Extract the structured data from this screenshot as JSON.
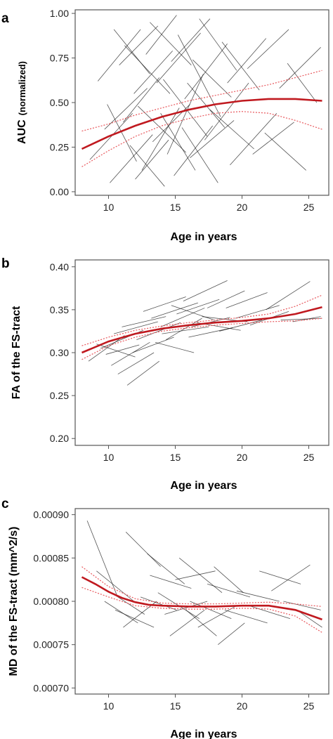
{
  "chart_data": [
    {
      "panel_label": "a",
      "type": "line",
      "xlabel": "Age in years",
      "ylabel_main": "AUC",
      "ylabel_sub": "(normalized)",
      "xlim": [
        7.5,
        26.5
      ],
      "ylim": [
        -0.02,
        1.02
      ],
      "xticks": [
        10,
        15,
        20,
        25
      ],
      "xtick_labels": [
        "10",
        "15",
        "20",
        "25"
      ],
      "yticks": [
        0,
        0.25,
        0.5,
        0.75,
        1.0
      ],
      "ytick_labels": [
        "0.00",
        "0.25",
        "0.50",
        "0.75",
        "1.00"
      ],
      "grid": false,
      "series": [
        {
          "role": "fit",
          "x": [
            8,
            10,
            12,
            14,
            16,
            18,
            20,
            22,
            24,
            26
          ],
          "y": [
            0.24,
            0.31,
            0.37,
            0.42,
            0.46,
            0.49,
            0.51,
            0.52,
            0.52,
            0.51
          ]
        },
        {
          "role": "ci_upper",
          "x": [
            8,
            10,
            12,
            14,
            16,
            18,
            20,
            22,
            24,
            26
          ],
          "y": [
            0.34,
            0.38,
            0.43,
            0.47,
            0.51,
            0.54,
            0.57,
            0.6,
            0.64,
            0.68
          ]
        },
        {
          "role": "ci_lower",
          "x": [
            8,
            10,
            12,
            14,
            16,
            18,
            20,
            22,
            24,
            26
          ],
          "y": [
            0.14,
            0.23,
            0.31,
            0.37,
            0.41,
            0.44,
            0.45,
            0.44,
            0.4,
            0.35
          ]
        }
      ],
      "subjects": [
        [
          9.2,
          0.62,
          12.4,
          0.91
        ],
        [
          8.6,
          0.18,
          11.8,
          0.44
        ],
        [
          10.1,
          0.05,
          13.3,
          0.32
        ],
        [
          11.2,
          0.82,
          14.6,
          0.55
        ],
        [
          12.5,
          0.12,
          15.3,
          0.47
        ],
        [
          13.1,
          0.95,
          16.2,
          0.71
        ],
        [
          14.4,
          0.21,
          17.1,
          0.66
        ],
        [
          15.2,
          0.88,
          18.4,
          0.42
        ],
        [
          9.7,
          0.35,
          12.9,
          0.58
        ],
        [
          10.8,
          0.71,
          13.7,
          0.93
        ],
        [
          12.2,
          0.48,
          15.8,
          0.22
        ],
        [
          13.6,
          0.61,
          16.9,
          0.89
        ],
        [
          14.9,
          0.09,
          17.8,
          0.37
        ],
        [
          16.3,
          0.74,
          19.2,
          0.53
        ],
        [
          17.2,
          0.29,
          20.5,
          0.61
        ],
        [
          18.5,
          0.84,
          21.3,
          0.57
        ],
        [
          19.1,
          0.15,
          22.6,
          0.44
        ],
        [
          20.4,
          0.69,
          23.5,
          0.91
        ],
        [
          21.7,
          0.33,
          24.8,
          0.12
        ],
        [
          22.8,
          0.58,
          25.9,
          0.81
        ],
        [
          11.6,
          0.26,
          14.2,
          0.03
        ],
        [
          13.9,
          0.44,
          16.5,
          0.12
        ],
        [
          15.7,
          0.52,
          18.9,
          0.83
        ],
        [
          16.8,
          0.97,
          19.6,
          0.68
        ],
        [
          10.4,
          0.91,
          13.1,
          0.66
        ],
        [
          12.8,
          0.77,
          15.1,
          0.99
        ],
        [
          14.1,
          0.63,
          17.4,
          0.31
        ],
        [
          15.5,
          0.36,
          18.2,
          0.05
        ],
        [
          9.9,
          0.49,
          12.1,
          0.17
        ],
        [
          11.9,
          0.55,
          14.8,
          0.79
        ],
        [
          13.3,
          0.28,
          16.1,
          0.49
        ],
        [
          17.6,
          0.46,
          20.9,
          0.24
        ],
        [
          18.9,
          0.61,
          21.8,
          0.86
        ],
        [
          20.8,
          0.21,
          23.9,
          0.39
        ],
        [
          23.4,
          0.72,
          25.6,
          0.5
        ],
        [
          12.0,
          0.07,
          14.5,
          0.29
        ],
        [
          14.7,
          0.73,
          17.6,
          0.97
        ],
        [
          16.1,
          0.19,
          19.4,
          0.4
        ],
        [
          11.1,
          0.39,
          13.8,
          0.64
        ],
        [
          15.9,
          0.61,
          18.7,
          0.36
        ]
      ]
    },
    {
      "panel_label": "b",
      "type": "line",
      "xlabel": "Age in years",
      "ylabel": "FA of the FS-tract",
      "xlim": [
        7.5,
        26.5
      ],
      "ylim": [
        0.192,
        0.408
      ],
      "xticks": [
        10,
        15,
        20,
        25
      ],
      "xtick_labels": [
        "10",
        "15",
        "20",
        "25"
      ],
      "yticks": [
        0.2,
        0.25,
        0.3,
        0.35,
        0.4
      ],
      "ytick_labels": [
        "0.20",
        "0.25",
        "0.30",
        "0.35",
        "0.40"
      ],
      "grid": false,
      "series": [
        {
          "role": "fit",
          "x": [
            8,
            10,
            12,
            14,
            16,
            18,
            20,
            22,
            24,
            26
          ],
          "y": [
            0.3,
            0.313,
            0.322,
            0.328,
            0.332,
            0.335,
            0.337,
            0.34,
            0.345,
            0.353
          ]
        },
        {
          "role": "ci_upper",
          "x": [
            8,
            10,
            12,
            14,
            16,
            18,
            20,
            22,
            24,
            26
          ],
          "y": [
            0.308,
            0.318,
            0.326,
            0.331,
            0.335,
            0.338,
            0.341,
            0.345,
            0.354,
            0.367
          ]
        },
        {
          "role": "ci_lower",
          "x": [
            8,
            10,
            12,
            14,
            16,
            18,
            20,
            22,
            24,
            26
          ],
          "y": [
            0.292,
            0.308,
            0.318,
            0.325,
            0.329,
            0.332,
            0.334,
            0.336,
            0.337,
            0.34
          ]
        }
      ],
      "subjects": [
        [
          8.5,
          0.29,
          11.2,
          0.32
        ],
        [
          9.4,
          0.305,
          12.6,
          0.326
        ],
        [
          10.2,
          0.285,
          13.1,
          0.312
        ],
        [
          11.0,
          0.33,
          14.3,
          0.342
        ],
        [
          12.1,
          0.315,
          15.4,
          0.335
        ],
        [
          13.2,
          0.34,
          16.7,
          0.358
        ],
        [
          14.0,
          0.322,
          17.5,
          0.33
        ],
        [
          15.1,
          0.345,
          18.3,
          0.362
        ],
        [
          16.2,
          0.33,
          19.1,
          0.341
        ],
        [
          17.4,
          0.352,
          20.2,
          0.372
        ],
        [
          18.3,
          0.325,
          21.5,
          0.338
        ],
        [
          19.5,
          0.34,
          22.8,
          0.355
        ],
        [
          9.1,
          0.31,
          12.0,
          0.295
        ],
        [
          10.7,
          0.275,
          13.4,
          0.3
        ],
        [
          11.8,
          0.3,
          14.9,
          0.318
        ],
        [
          13.5,
          0.312,
          16.4,
          0.3
        ],
        [
          14.7,
          0.355,
          17.9,
          0.338
        ],
        [
          16.0,
          0.318,
          19.3,
          0.329
        ],
        [
          20.6,
          0.332,
          23.5,
          0.348
        ],
        [
          21.8,
          0.35,
          25.1,
          0.383
        ],
        [
          22.9,
          0.338,
          26.0,
          0.34
        ],
        [
          12.6,
          0.348,
          15.8,
          0.365
        ],
        [
          15.6,
          0.36,
          18.9,
          0.384
        ],
        [
          10.4,
          0.322,
          13.7,
          0.336
        ],
        [
          17.0,
          0.342,
          20.4,
          0.336
        ],
        [
          18.8,
          0.352,
          21.9,
          0.37
        ],
        [
          9.8,
          0.298,
          12.3,
          0.309
        ],
        [
          13.9,
          0.33,
          17.2,
          0.352
        ],
        [
          11.4,
          0.262,
          13.8,
          0.29
        ],
        [
          23.8,
          0.336,
          25.9,
          0.342
        ],
        [
          14.3,
          0.315,
          17.0,
          0.34
        ],
        [
          16.6,
          0.335,
          19.9,
          0.326
        ]
      ]
    },
    {
      "panel_label": "c",
      "type": "line",
      "xlabel": "Age in years",
      "ylabel": "MD of the FS-tract (mm^2/s)",
      "xlim": [
        7.5,
        26.5
      ],
      "ylim": [
        0.000693,
        0.000907
      ],
      "xticks": [
        10,
        15,
        20,
        25
      ],
      "xtick_labels": [
        "10",
        "15",
        "20",
        "25"
      ],
      "yticks": [
        0.0007,
        0.00075,
        0.0008,
        0.00085,
        0.0009
      ],
      "ytick_labels": [
        "0.00070",
        "0.00075",
        "0.00080",
        "0.00085",
        "0.00090"
      ],
      "grid": false,
      "series": [
        {
          "role": "fit",
          "x": [
            8,
            9,
            10,
            11,
            12,
            13,
            14,
            16,
            18,
            20,
            22,
            24,
            26
          ],
          "y": [
            0.000828,
            0.00082,
            0.000811,
            0.000804,
            0.000799,
            0.000796,
            0.000795,
            0.000794,
            0.000794,
            0.000795,
            0.000795,
            0.00079,
            0.000779
          ]
        },
        {
          "role": "ci_upper",
          "x": [
            8,
            10,
            12,
            14,
            16,
            18,
            20,
            22,
            24,
            26
          ],
          "y": [
            0.00084,
            0.000817,
            0.000803,
            0.000798,
            0.000797,
            0.000797,
            0.000798,
            0.000799,
            0.000797,
            0.000794
          ]
        },
        {
          "role": "ci_lower",
          "x": [
            8,
            10,
            12,
            14,
            16,
            18,
            20,
            22,
            24,
            26
          ],
          "y": [
            0.000816,
            0.000805,
            0.000795,
            0.000792,
            0.000791,
            0.000791,
            0.000792,
            0.000791,
            0.000783,
            0.000764
          ]
        }
      ],
      "subjects": [
        [
          8.4,
          0.000893,
          10.6,
          0.000808
        ],
        [
          9.1,
          0.000835,
          11.9,
          0.0008
        ],
        [
          10.0,
          0.000812,
          12.7,
          0.000785
        ],
        [
          11.3,
          0.00088,
          13.9,
          0.00084
        ],
        [
          12.4,
          0.000805,
          15.1,
          0.00079
        ],
        [
          13.1,
          0.00083,
          16.2,
          0.000815
        ],
        [
          14.2,
          0.000785,
          17.4,
          0.0008
        ],
        [
          15.3,
          0.00085,
          18.5,
          0.00081
        ],
        [
          16.1,
          0.0008,
          19.2,
          0.00078
        ],
        [
          17.4,
          0.00082,
          20.6,
          0.000805
        ],
        [
          18.7,
          0.00079,
          21.9,
          0.000775
        ],
        [
          19.6,
          0.000812,
          22.8,
          0.0008
        ],
        [
          20.5,
          0.000795,
          23.6,
          0.00078
        ],
        [
          21.3,
          0.000835,
          24.4,
          0.00082
        ],
        [
          23.1,
          0.0008,
          25.9,
          0.00079
        ],
        [
          9.7,
          0.0008,
          12.2,
          0.000775
        ],
        [
          11.1,
          0.00077,
          13.6,
          0.0008
        ],
        [
          12.9,
          0.000855,
          15.7,
          0.00082
        ],
        [
          14.6,
          0.00076,
          17.2,
          0.00079
        ],
        [
          15.8,
          0.00079,
          18.1,
          0.00076
        ],
        [
          17.9,
          0.00084,
          20.1,
          0.00081
        ],
        [
          16.7,
          0.00077,
          19.6,
          0.000795
        ],
        [
          13.7,
          0.00081,
          16.8,
          0.00078
        ],
        [
          10.5,
          0.00079,
          13.4,
          0.00077
        ],
        [
          22.2,
          0.000812,
          25.1,
          0.000842
        ],
        [
          18.2,
          0.00075,
          20.2,
          0.000775
        ],
        [
          24.1,
          0.00079,
          26.0,
          0.00077
        ],
        [
          15.0,
          0.000825,
          18.0,
          0.000835
        ]
      ]
    }
  ],
  "colors": {
    "fit": "#c0191f",
    "ci": "#e8575c",
    "subject": "#1a1a1a",
    "axis": "#555555"
  }
}
